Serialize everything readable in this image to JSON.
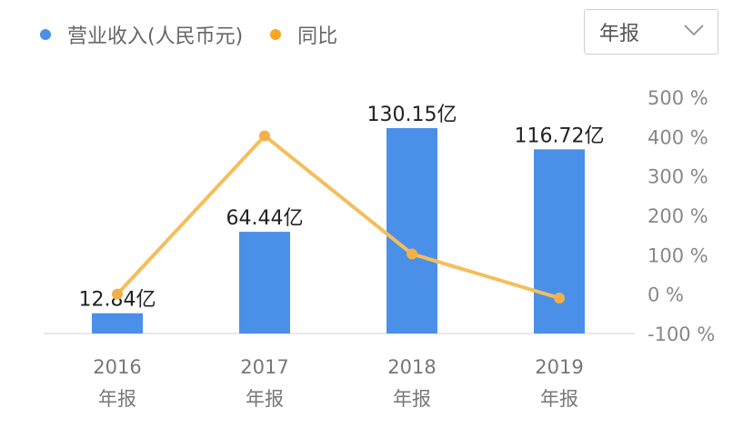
{
  "legend": {
    "revenue_label": "营业收入(人民币元)",
    "yoy_label": "同比"
  },
  "colors": {
    "bar": "#4a90e8",
    "line": "#f5be5a",
    "line_dot": "#f3b04a",
    "axis": "#e0e0e0"
  },
  "period_select": {
    "value": "年报"
  },
  "chart_data": {
    "type": "bar+line",
    "categories": [
      "2016",
      "2017",
      "2018",
      "2019"
    ],
    "category_sublabels": [
      "年报",
      "年报",
      "年报",
      "年报"
    ],
    "series": [
      {
        "name": "营业收入(人民币元)",
        "type": "bar",
        "values": [
          12.84,
          64.44,
          130.15,
          116.72
        ],
        "labels": [
          "12.84亿",
          "64.44亿",
          "130.15亿",
          "116.72亿"
        ]
      },
      {
        "name": "同比",
        "type": "line",
        "axis": "right",
        "values": [
          0,
          402,
          102,
          -10
        ]
      }
    ],
    "y_left_range": [
      0,
      140
    ],
    "y_right_range": [
      -100,
      500
    ],
    "y_right_ticks": [
      "500 %",
      "400 %",
      "300 %",
      "200 %",
      "100 %",
      "0 %",
      "-100 %"
    ],
    "grid": false,
    "legend_position": "top-left"
  }
}
